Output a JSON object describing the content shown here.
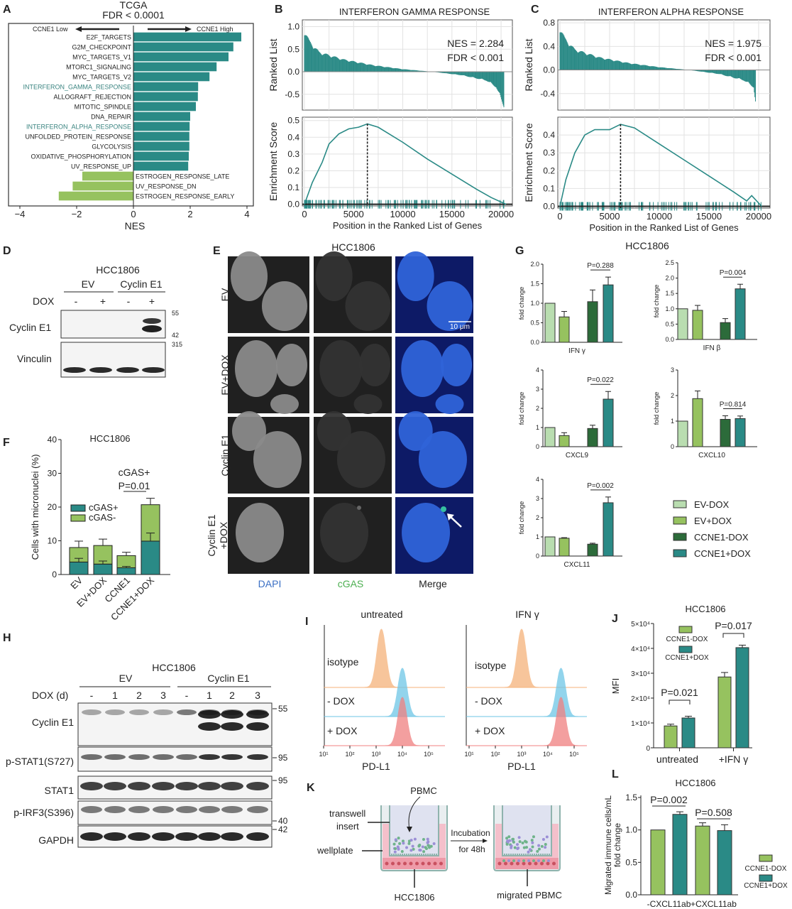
{
  "panel_letters": [
    "A",
    "B",
    "C",
    "D",
    "E",
    "F",
    "G",
    "H",
    "I",
    "J",
    "K",
    "L"
  ],
  "colors": {
    "teal": "#2a8a86",
    "green": "#96c25f",
    "light_green": "#b9ddb0",
    "dark_green": "#2c6b3a",
    "highlight_label": "#3a8480",
    "dapi": "#3a6fc4",
    "cgas": "#4caf50",
    "isotype": "#f5b27a",
    "minus_dox": "#6ec6e6",
    "plus_dox": "#f08080"
  },
  "chart_data": [
    {
      "id": "A",
      "type": "bar",
      "orientation": "horizontal",
      "title": "TCGA",
      "subtitle": "FDR < 0.0001",
      "left_arrow": "CCNE1 Low",
      "right_arrow": "CCNE1 High",
      "xlabel": "NES",
      "xlim": [
        -4.4,
        4.2
      ],
      "xticks": [
        "−4",
        "−2",
        "0",
        "2",
        "4"
      ],
      "xtick_values": [
        -4,
        -2,
        0,
        2,
        4
      ],
      "categories": [
        "E2F_TARGETS",
        "G2M_CHECKPOINT",
        "MYC_TARGETS_V1",
        "MTORC1_SIGNALING",
        "MYC_TARGETS_V2",
        "INTERFERON_GAMMA_RESPONSE",
        "ALLOGRAFT_REJECTION",
        "MITOTIC_SPINDLE",
        "DNA_REPAIR",
        "INTERFERON_ALPHA_RESPONSE",
        "UNFOLDED_PROTEIN_RESPONSE",
        "GLYCOLYSIS",
        "OXIDATIVE_PHOSPHORYLATION",
        "UV_RESPONSE_UP",
        "ESTROGEN_RESPONSE_LATE",
        "UV_RESPONSE_DN",
        "ESTROGEN_RESPONSE_EARLY"
      ],
      "values": [
        3.8,
        3.52,
        3.35,
        2.93,
        2.68,
        2.28,
        2.27,
        2.2,
        2.0,
        1.98,
        1.97,
        1.97,
        1.95,
        1.93,
        -1.8,
        -2.14,
        -2.63
      ],
      "highlighted": [
        "INTERFERON_GAMMA_RESPONSE",
        "INTERFERON_ALPHA_RESPONSE"
      ]
    },
    {
      "id": "B",
      "type": "line",
      "title": "INTERFERON GAMMA RESPONSE",
      "nes": "NES = 2.284",
      "fdr": "FDR < 0.001",
      "top_ylabel": "Ranked List",
      "bottom_ylabel": "Enrichment Score",
      "xlabel": "Position in the Ranked List of Genes",
      "xticks": [
        "0",
        "5000",
        "10000",
        "15000",
        "20000"
      ],
      "xtick_values": [
        0,
        5000,
        10000,
        15000,
        20000
      ],
      "top_yticks": [
        "1.0",
        "0.5",
        "0.0",
        "-0.5"
      ],
      "top_ytick_values": [
        1.0,
        0.5,
        0.0,
        -0.5
      ],
      "top_ylim": [
        -0.85,
        1.15
      ],
      "bottom_yticks": [
        "0.5",
        "0.4",
        "0.3",
        "0.2",
        "0.1",
        "0.0"
      ],
      "bottom_ytick_values": [
        0.5,
        0.4,
        0.3,
        0.2,
        0.1,
        0.0
      ],
      "bottom_ylim": [
        -0.01,
        0.52
      ],
      "ranked_list": [
        [
          0,
          0.95
        ],
        [
          500,
          0.7
        ],
        [
          1500,
          0.45
        ],
        [
          4000,
          0.28
        ],
        [
          7000,
          0.15
        ],
        [
          10000,
          0.06
        ],
        [
          13000,
          0.0
        ],
        [
          16000,
          -0.08
        ],
        [
          18500,
          -0.2
        ],
        [
          19500,
          -0.35
        ],
        [
          20300,
          -0.8
        ]
      ],
      "es_curve": [
        [
          0,
          0
        ],
        [
          800,
          0.13
        ],
        [
          1800,
          0.25
        ],
        [
          2500,
          0.36
        ],
        [
          3500,
          0.42
        ],
        [
          4500,
          0.45
        ],
        [
          5500,
          0.46
        ],
        [
          6400,
          0.48
        ],
        [
          7500,
          0.46
        ],
        [
          10000,
          0.37
        ],
        [
          12500,
          0.27
        ],
        [
          15000,
          0.18
        ],
        [
          17500,
          0.09
        ],
        [
          19000,
          0.04
        ],
        [
          20500,
          0
        ]
      ],
      "peak_position": 6400
    },
    {
      "id": "C",
      "type": "line",
      "title": "INTERFERON ALPHA RESPONSE",
      "nes": "NES = 1.975",
      "fdr": "FDR < 0.001",
      "top_ylabel": "Ranked List",
      "bottom_ylabel": "Enrichment Score",
      "xlabel": "Position in the Ranked List of Genes",
      "xticks": [
        "0",
        "5000",
        "10000",
        "15000",
        "20000"
      ],
      "xtick_values": [
        0,
        5000,
        10000,
        15000,
        20000
      ],
      "top_yticks": [
        "0.8",
        "0.4",
        "0.0",
        "-0.4"
      ],
      "top_ytick_values": [
        0.8,
        0.4,
        0.0,
        -0.4
      ],
      "top_ylim": [
        -0.68,
        0.85
      ],
      "bottom_yticks": [
        "0.4",
        "0.3",
        "0.2",
        "0.1",
        "0.0"
      ],
      "bottom_ytick_values": [
        0.4,
        0.3,
        0.2,
        0.1,
        0.0
      ],
      "bottom_ylim": [
        -0.01,
        0.5
      ],
      "ranked_list": [
        [
          0,
          0.75
        ],
        [
          500,
          0.55
        ],
        [
          1500,
          0.36
        ],
        [
          4000,
          0.22
        ],
        [
          7000,
          0.12
        ],
        [
          10000,
          0.05
        ],
        [
          13000,
          0.0
        ],
        [
          16000,
          -0.07
        ],
        [
          18500,
          -0.18
        ],
        [
          19500,
          -0.3
        ],
        [
          19700,
          -0.6
        ]
      ],
      "es_curve": [
        [
          0,
          0
        ],
        [
          600,
          0.15
        ],
        [
          1500,
          0.3
        ],
        [
          2500,
          0.4
        ],
        [
          3500,
          0.43
        ],
        [
          5000,
          0.43
        ],
        [
          6100,
          0.46
        ],
        [
          7500,
          0.44
        ],
        [
          10000,
          0.35
        ],
        [
          12500,
          0.26
        ],
        [
          15000,
          0.17
        ],
        [
          17500,
          0.08
        ],
        [
          18800,
          0.03
        ],
        [
          19300,
          0.06
        ],
        [
          20300,
          0
        ]
      ],
      "peak_position": 6100
    },
    {
      "id": "F",
      "type": "bar",
      "stacked": true,
      "title": "HCC1806",
      "ylabel": "Cells with micronuclei (%)",
      "ylim": [
        0,
        40
      ],
      "yticks": [
        "0",
        "10",
        "20",
        "30",
        "40"
      ],
      "ytick_values": [
        0,
        10,
        20,
        30,
        40
      ],
      "categories": [
        "EV",
        "EV+DOX",
        "CCNE1",
        "CCNE1+DOX"
      ],
      "series": [
        {
          "name": "cGAS+",
          "values": [
            3.7,
            3.1,
            2.0,
            9.9
          ],
          "errors": [
            1.1,
            0.9,
            0.4,
            2.4
          ]
        },
        {
          "name": "cGAS-",
          "values": [
            4.3,
            5.5,
            3.6,
            10.8
          ],
          "errors": [
            1.9,
            1.9,
            1.0,
            1.9
          ]
        }
      ],
      "annotation": "cGAS+",
      "pvalue": "P=0.01"
    },
    {
      "id": "G",
      "type": "bar",
      "title": "HCC1806",
      "ylabel": "fold change",
      "series_names": [
        "EV-DOX",
        "EV+DOX",
        "CCNE1-DOX",
        "CCNE1+DOX"
      ],
      "subplots": [
        {
          "gene": "IFN  γ",
          "ylim": [
            0,
            2.0
          ],
          "yticks": [
            "0.0",
            "0.5",
            "1.0",
            "1.5",
            "2.0"
          ],
          "ytick_values": [
            0,
            0.5,
            1,
            1.5,
            2
          ],
          "values": [
            1.0,
            0.65,
            1.04,
            1.47
          ],
          "errors": [
            0,
            0.14,
            0.3,
            0.2
          ],
          "pvalue": "P=0.288"
        },
        {
          "gene": "IFN β",
          "ylim": [
            0,
            2.5
          ],
          "yticks": [
            "0.0",
            "0.5",
            "1.0",
            "1.5",
            "2.0",
            "2.5"
          ],
          "ytick_values": [
            0,
            0.5,
            1,
            1.5,
            2,
            2.5
          ],
          "values": [
            1.0,
            0.95,
            0.55,
            1.65
          ],
          "errors": [
            0,
            0.16,
            0.13,
            0.15
          ],
          "pvalue": "P=0.004"
        },
        {
          "gene": "CXCL9",
          "ylim": [
            0,
            4
          ],
          "yticks": [
            "0",
            "1",
            "2",
            "3",
            "4"
          ],
          "ytick_values": [
            0,
            1,
            2,
            3,
            4
          ],
          "values": [
            1.0,
            0.58,
            0.95,
            2.48
          ],
          "errors": [
            0,
            0.15,
            0.17,
            0.4
          ],
          "pvalue": "P=0.022"
        },
        {
          "gene": "CXCL10",
          "ylim": [
            0,
            3
          ],
          "yticks": [
            "0",
            "1",
            "2",
            "3"
          ],
          "ytick_values": [
            0,
            1,
            2,
            3
          ],
          "values": [
            1.0,
            1.88,
            1.07,
            1.1
          ],
          "errors": [
            0,
            0.3,
            0.14,
            0.1
          ],
          "pvalue": "P=0.814"
        },
        {
          "gene": "CXCL11",
          "ylim": [
            0,
            4
          ],
          "yticks": [
            "0",
            "1",
            "2",
            "3",
            "4"
          ],
          "ytick_values": [
            0,
            1,
            2,
            3,
            4
          ],
          "values": [
            1.0,
            0.93,
            0.62,
            2.78
          ],
          "errors": [
            0,
            0.03,
            0.05,
            0.3
          ],
          "pvalue": "P=0.002"
        }
      ]
    },
    {
      "id": "I",
      "type": "area",
      "titles": [
        "untreated",
        "IFN γ"
      ],
      "xlabel": "PD-L1",
      "xscale": "log",
      "xticks": [
        "10¹",
        "10²",
        "10³",
        "10⁴",
        "10⁵"
      ],
      "xtick_values": [
        10,
        100,
        1000,
        10000,
        100000
      ],
      "rows": [
        "isotype",
        "- DOX",
        "+ DOX"
      ],
      "peak_log10": {
        "untreated": [
          3.2,
          4.0,
          4.0
        ],
        "IFN γ": [
          3.0,
          4.5,
          4.5
        ]
      }
    },
    {
      "id": "J",
      "type": "bar",
      "title": "HCC1806",
      "ylabel": "MFI",
      "ylim": [
        0,
        50000
      ],
      "yticks": [
        "0",
        "1×10⁴",
        "2×10⁴",
        "3×10⁴",
        "4×10⁴",
        "5×10⁴"
      ],
      "ytick_values": [
        0,
        10000,
        20000,
        30000,
        40000,
        50000
      ],
      "categories": [
        "untreated",
        "+IFN γ"
      ],
      "series": [
        {
          "name": "CCNE1-DOX",
          "values": [
            8800,
            28500
          ],
          "errors": [
            700,
            1800
          ]
        },
        {
          "name": "CCNE1+DOX",
          "values": [
            12000,
            40300
          ],
          "errors": [
            700,
            1000
          ]
        }
      ],
      "pvalues": [
        "P=0.021",
        "P=0.017"
      ]
    },
    {
      "id": "L",
      "type": "bar",
      "title": "HCC1806",
      "ylabel": "Migrated immune cells/mL fold change",
      "ylabel_lines": [
        "Migrated immune cells/mL",
        "fold change"
      ],
      "ylim": [
        0,
        1.5
      ],
      "yticks": [
        "0.0",
        "0.5",
        "1.0",
        "1.5"
      ],
      "ytick_values": [
        0,
        0.5,
        1,
        1.5
      ],
      "categories": [
        "-CXCL11ab",
        "+CXCL11ab"
      ],
      "series": [
        {
          "name": "CCNE1-DOX",
          "values": [
            1.0,
            1.06
          ],
          "errors": [
            0,
            0.05
          ]
        },
        {
          "name": "CCNE1+DOX",
          "values": [
            1.24,
            0.99
          ],
          "errors": [
            0.04,
            0.09
          ]
        }
      ],
      "pvalues": [
        "P=0.002",
        "P=0.508"
      ]
    }
  ],
  "panel_D": {
    "cell_line": "HCC1806",
    "groups": [
      "EV",
      "Cyclin E1"
    ],
    "dox_label": "DOX",
    "lanes": [
      "-",
      "+",
      "-",
      "+"
    ],
    "blots": [
      "Cyclin E1",
      "Vinculin"
    ],
    "markers": [
      "55",
      "42",
      "315"
    ]
  },
  "panel_E": {
    "cell_line": "HCC1806",
    "rows": [
      "EV",
      "EV+DOX",
      "Cyclin E1"
    ],
    "row4": [
      "Cyclin E1",
      "+DOX"
    ],
    "columns": [
      "DAPI",
      "cGAS",
      "Merge"
    ],
    "scale_bar": "10 μm"
  },
  "panel_H": {
    "cell_line": "HCC1806",
    "groups": [
      "EV",
      "Cyclin E1"
    ],
    "dox_label": "DOX (d)",
    "lanes": [
      "-",
      "1",
      "2",
      "3",
      "-",
      "1",
      "2",
      "3"
    ],
    "blots": [
      "Cyclin E1",
      "p-STAT1(S727)",
      "STAT1",
      "p-IRF3(S396)",
      "GAPDH"
    ],
    "markers": [
      "55",
      "95",
      "95",
      "40",
      "42"
    ]
  },
  "panel_K": {
    "labels": {
      "pbmc": "PBMC",
      "transwell1": "transwell",
      "transwell2": "insert",
      "wellplate": "wellplate",
      "incubation1": "Incubation",
      "incubation2": "for  48h",
      "cells": "HCC1806",
      "migrated": "migrated PBMC"
    }
  }
}
